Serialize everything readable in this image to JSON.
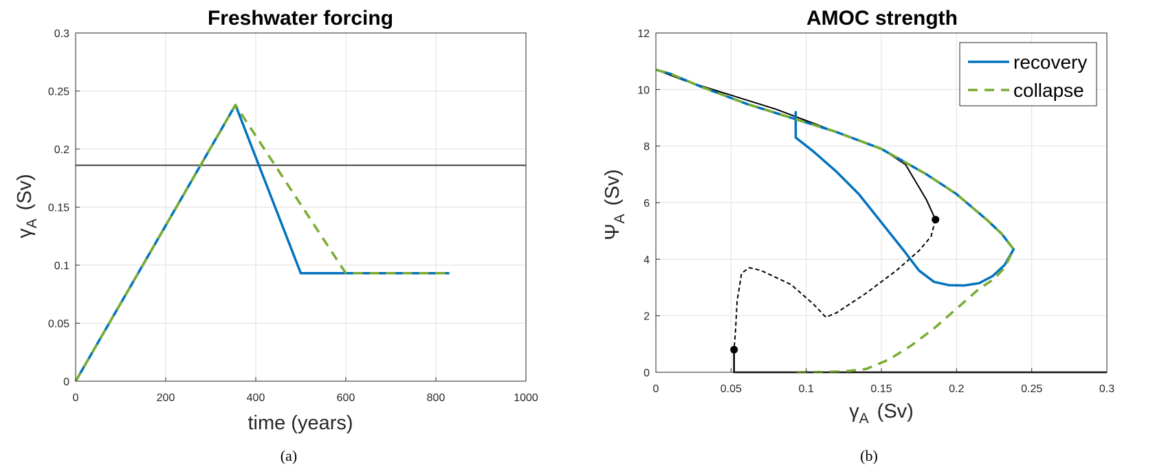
{
  "colors": {
    "recovery": "#0072bd",
    "collapse": "#77ac30",
    "bifurcation": "#000000",
    "threshold": "#555555"
  },
  "chart_data": [
    {
      "type": "line",
      "title": "Freshwater forcing",
      "xlabel": "time (years)",
      "ylabel_main": "γ",
      "ylabel_sub": "A",
      "ylabel_unit": "(Sv)",
      "xlim": [
        0,
        1000
      ],
      "ylim": [
        0,
        0.3
      ],
      "xticks": [
        0,
        200,
        400,
        600,
        800,
        1000
      ],
      "yticks": [
        0,
        0.05,
        0.1,
        0.15,
        0.2,
        0.25,
        0.3
      ],
      "xtick_labels": [
        "0",
        "200",
        "400",
        "600",
        "800",
        "1000"
      ],
      "ytick_labels": [
        "0",
        "0.05",
        "0.1",
        "0.15",
        "0.2",
        "0.25",
        "0.3"
      ],
      "grid": true,
      "caption": "(a)",
      "threshold": 0.186,
      "series": [
        {
          "name": "recovery",
          "style": "solid",
          "x": [
            0,
            355,
            500,
            830
          ],
          "y": [
            0,
            0.238,
            0.093,
            0.093
          ]
        },
        {
          "name": "collapse",
          "style": "dashed",
          "x": [
            0,
            355,
            600,
            830
          ],
          "y": [
            0,
            0.238,
            0.093,
            0.093
          ]
        }
      ]
    },
    {
      "type": "line",
      "title": "AMOC strength",
      "xlabel_main": "γ",
      "xlabel_sub": "A",
      "xlabel_unit": "(Sv)",
      "ylabel_main": "Ψ",
      "ylabel_sub": "A",
      "ylabel_unit": "(Sv)",
      "xlim": [
        0,
        0.3
      ],
      "ylim": [
        0,
        12
      ],
      "xticks": [
        0,
        0.05,
        0.1,
        0.15,
        0.2,
        0.25,
        0.3
      ],
      "yticks": [
        0,
        2,
        4,
        6,
        8,
        10,
        12
      ],
      "xtick_labels": [
        "0",
        "0.05",
        "0.1",
        "0.15",
        "0.2",
        "0.25",
        "0.3"
      ],
      "ytick_labels": [
        "0",
        "2",
        "4",
        "6",
        "8",
        "10",
        "12"
      ],
      "grid": true,
      "legend_position": "top-right",
      "caption": "(b)",
      "legend": [
        {
          "label": "recovery",
          "style": "solid"
        },
        {
          "label": "collapse",
          "style": "dashed"
        }
      ],
      "bifurcation_stable_upper": {
        "x": [
          0,
          0.02,
          0.05,
          0.08,
          0.1,
          0.12,
          0.15,
          0.166,
          0.18,
          0.186
        ],
        "y": [
          10.7,
          10.3,
          9.8,
          9.3,
          8.9,
          8.5,
          7.9,
          7.35,
          6.1,
          5.4
        ]
      },
      "bifurcation_unstable": {
        "x": [
          0.186,
          0.183,
          0.175,
          0.16,
          0.14,
          0.12,
          0.113,
          0.105,
          0.09,
          0.07,
          0.062,
          0.057,
          0.054,
          0.053,
          0.052
        ],
        "y": [
          5.4,
          4.8,
          4.3,
          3.6,
          2.8,
          2.1,
          1.95,
          2.4,
          3.1,
          3.6,
          3.7,
          3.5,
          2.5,
          1.5,
          0.8
        ]
      },
      "bifurcation_stable_lower": {
        "x": [
          0.052,
          0.052,
          0.3
        ],
        "y": [
          0.8,
          0,
          0
        ]
      },
      "bifurcation_points": [
        {
          "x": 0.186,
          "y": 5.4
        },
        {
          "x": 0.052,
          "y": 0.8
        }
      ],
      "series": [
        {
          "name": "recovery",
          "style": "solid",
          "x": [
            0,
            0.01,
            0.03,
            0.06,
            0.09,
            0.12,
            0.15,
            0.18,
            0.2,
            0.22,
            0.23,
            0.238,
            0.232,
            0.224,
            0.215,
            0.205,
            0.195,
            0.185,
            0.175,
            0.165,
            0.15,
            0.135,
            0.12,
            0.105,
            0.093,
            0.093,
            0.093
          ],
          "y": [
            10.7,
            10.55,
            10.1,
            9.5,
            9.0,
            8.5,
            7.9,
            7.0,
            6.3,
            5.4,
            4.9,
            4.35,
            3.8,
            3.4,
            3.15,
            3.07,
            3.08,
            3.2,
            3.6,
            4.3,
            5.3,
            6.3,
            7.1,
            7.8,
            8.3,
            9.2,
            8.3
          ]
        },
        {
          "name": "collapse",
          "style": "dashed",
          "x": [
            0,
            0.01,
            0.03,
            0.06,
            0.09,
            0.12,
            0.15,
            0.18,
            0.2,
            0.22,
            0.23,
            0.238,
            0.232,
            0.225,
            0.215,
            0.2,
            0.185,
            0.17,
            0.155,
            0.14,
            0.125,
            0.11,
            0.093
          ],
          "y": [
            10.7,
            10.55,
            10.1,
            9.5,
            9.0,
            8.5,
            7.9,
            7.0,
            6.3,
            5.4,
            4.9,
            4.35,
            3.7,
            3.3,
            2.95,
            2.25,
            1.55,
            0.95,
            0.45,
            0.12,
            0.03,
            0.01,
            0.0
          ]
        }
      ]
    }
  ]
}
